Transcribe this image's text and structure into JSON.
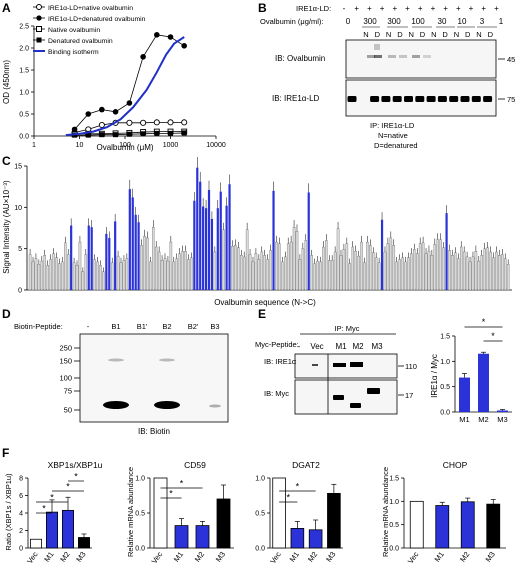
{
  "panels": {
    "A": "A",
    "B": "B",
    "C": "C",
    "D": "D",
    "E": "E",
    "F": "F"
  },
  "chart_data": [
    {
      "panel": "A",
      "type": "line",
      "xscale": "log",
      "xlabel": "Ovalbumin (μM)",
      "ylabel": "OD (450nm)",
      "xlim": [
        1,
        10000
      ],
      "ylim": [
        0,
        2.5
      ],
      "xticks": [
        "1",
        "10",
        "100",
        "1000",
        "10000"
      ],
      "yticks": [
        "0.0",
        "0.5",
        "1.0",
        "1.5",
        "2.0",
        "2.5"
      ],
      "legend": [
        "IRE1α-LD+native ovalbumin",
        "IRE1α-LD+denatured ovalbumin",
        "Native ovalbumin",
        "Denatured ovalbumin",
        "Binding isotherm"
      ],
      "series": [
        {
          "name": "IRE1α-LD+native ovalbumin",
          "marker": "open-circle",
          "x": [
            7.8,
            15.6,
            31,
            62,
            125,
            250,
            500,
            1000,
            2000
          ],
          "y": [
            0.08,
            0.15,
            0.25,
            0.3,
            0.3,
            0.3,
            0.31,
            0.31,
            0.31
          ]
        },
        {
          "name": "IRE1α-LD+denatured ovalbumin",
          "marker": "filled-circle",
          "x": [
            7.8,
            15.6,
            31,
            62,
            125,
            250,
            500,
            1000,
            2000
          ],
          "y": [
            0.15,
            0.5,
            0.6,
            0.55,
            0.75,
            1.8,
            2.3,
            2.25,
            2.05
          ]
        },
        {
          "name": "Native ovalbumin",
          "marker": "open-square",
          "x": [
            7.8,
            15.6,
            31,
            62,
            125,
            250,
            500,
            1000,
            2000
          ],
          "y": [
            0.04,
            0.05,
            0.05,
            0.06,
            0.07,
            0.09,
            0.1,
            0.1,
            0.1
          ]
        },
        {
          "name": "Denatured ovalbumin",
          "marker": "filled-square",
          "x": [
            7.8,
            15.6,
            31,
            62,
            125,
            250,
            500,
            1000,
            2000
          ],
          "y": [
            0.02,
            0.02,
            0.03,
            0.03,
            0.04,
            0.05,
            0.06,
            0.06,
            0.07
          ]
        },
        {
          "name": "Binding isotherm",
          "marker": "line",
          "x": [
            5,
            10,
            20,
            40,
            80,
            150,
            300,
            500,
            800,
            1200,
            2000
          ],
          "y": [
            0.02,
            0.05,
            0.1,
            0.2,
            0.38,
            0.65,
            1.05,
            1.45,
            1.85,
            2.1,
            2.25
          ]
        }
      ]
    },
    {
      "panel": "C",
      "type": "bar",
      "xlabel": "Ovalbumin sequence (N->C)",
      "ylabel": "Signal Intensity (AU×10⁻³)",
      "ylim": [
        0,
        15
      ],
      "yticks": [
        "0",
        "5",
        "10",
        "15"
      ],
      "values": [
        4.3,
        3.4,
        3.8,
        3.1,
        3.5,
        4.2,
        3.0,
        3.7,
        4.4,
        3.9,
        3.2,
        3.4,
        5.7,
        4.3,
        7.8,
        3.3,
        3.0,
        5.8,
        2.2,
        4.3,
        7.8,
        7.6,
        3.7,
        3.4,
        3.0,
        2.2,
        6.8,
        6.3,
        3.3,
        8.3,
        4.1,
        3.3,
        3.6,
        3.8,
        12.2,
        11.2,
        9.1,
        8.2,
        5.4,
        6.5,
        6.3,
        3.4,
        7.6,
        5.2,
        4.6,
        3.6,
        3.8,
        3.5,
        5.8,
        3.4,
        3.8,
        4.4,
        4.7,
        4.7,
        3.7,
        3.9,
        10.8,
        14.8,
        13.1,
        10.1,
        9.9,
        12.1,
        8.6,
        4.6,
        9.9,
        11.9,
        7.3,
        10.2,
        12.8,
        5.3,
        5.4,
        5.1,
        4.2,
        4.0,
        7.3,
        4.3,
        3.4,
        4.4,
        3.7,
        4.6,
        4.2,
        3.7,
        4.8,
        12.0,
        5.8,
        5.6,
        3.4,
        4.0,
        5.6,
        5.8,
        7.6,
        7.1,
        3.7,
        5.0,
        6.0,
        11.8,
        4.2,
        3.2,
        3.5,
        3.4,
        5.2,
        6.0,
        3.6,
        3.6,
        4.6,
        7.4,
        4.2,
        4.9,
        5.6,
        3.2,
        5.2,
        4.7,
        4.1,
        5.8,
        3.3,
        5.8,
        5.4,
        4.5,
        3.9,
        3.3,
        8.5,
        4.6,
        5.6,
        6.3,
        5.4,
        3.4,
        3.7,
        3.9,
        3.4,
        3.9,
        4.4,
        4.9,
        4.4,
        5.6,
        5.7,
        4.4,
        4.7,
        4.2,
        5.5,
        6.1,
        6.1,
        5.1,
        9.3,
        4.8,
        4.2,
        4.5,
        3.8,
        5.2,
        4.6,
        4.0,
        3.4,
        4.0,
        4.7,
        3.5,
        4.2,
        5.0,
        5.1,
        4.6,
        3.9,
        4.6,
        4.2,
        4.3,
        3.8,
        3.1
      ],
      "highlighted_indices": [
        14,
        20,
        21,
        26,
        27,
        29,
        34,
        35,
        36,
        37,
        56,
        57,
        58,
        59,
        60,
        61,
        62,
        64,
        65,
        67,
        68,
        83,
        95,
        120,
        142
      ],
      "colors": {
        "highlighted": "#2a32d8",
        "other": "#d9d9d9"
      }
    },
    {
      "panel": "E",
      "type": "bar",
      "ylabel": "IRE1α / Myc",
      "categories": [
        "M1",
        "M2",
        "M3"
      ],
      "values": [
        0.68,
        1.15,
        0.03
      ],
      "errors": [
        0.08,
        0.03,
        0.02
      ],
      "ylim": [
        0,
        1.5
      ],
      "yticks": [
        "0.0",
        "0.5",
        "1.0",
        "1.5"
      ],
      "significance": [
        "*",
        "*"
      ]
    },
    {
      "panel": "F",
      "type": "bar",
      "title": "XBP1s/XBP1u",
      "ylabel": "Ratio (XBP1s / XBP1u)",
      "categories": [
        "Vec",
        "M1",
        "M2",
        "M3"
      ],
      "values": [
        1.0,
        4.1,
        4.3,
        1.2
      ],
      "errors": [
        0,
        1.4,
        1.5,
        0.4
      ],
      "ylim": [
        0,
        8
      ],
      "yticks": [
        "0",
        "2",
        "4",
        "6",
        "8"
      ],
      "significance": [
        "*",
        "*",
        "*",
        "*"
      ]
    },
    {
      "panel": "F",
      "type": "bar",
      "title": "CD59",
      "ylabel": "Relative mRNA abundance",
      "categories": [
        "Vec",
        "M1",
        "M2",
        "M3"
      ],
      "values": [
        1.0,
        0.32,
        0.32,
        0.7
      ],
      "errors": [
        0,
        0.1,
        0.06,
        0.2
      ],
      "ylim": [
        0,
        1.0
      ],
      "yticks": [
        "0.0",
        "0.5",
        "1.0"
      ],
      "significance": [
        "*",
        "*"
      ]
    },
    {
      "panel": "F",
      "type": "bar",
      "title": "DGAT2",
      "ylabel": "",
      "categories": [
        "Vec",
        "M1",
        "M2",
        "M3"
      ],
      "values": [
        1.0,
        0.28,
        0.26,
        0.78
      ],
      "errors": [
        0,
        0.1,
        0.14,
        0.13
      ],
      "ylim": [
        0,
        1.0
      ],
      "yticks": [
        "0.0",
        "0.5",
        "1.0"
      ],
      "significance": [
        "*",
        "*"
      ]
    },
    {
      "panel": "F",
      "type": "bar",
      "title": "CHOP",
      "ylabel": "Relative mRNA abundance",
      "categories": [
        "Vec",
        "M1",
        "M2",
        "M3"
      ],
      "values": [
        1.0,
        0.91,
        0.99,
        0.94
      ],
      "errors": [
        0,
        0.07,
        0.08,
        0.1
      ],
      "ylim": [
        0,
        1.5
      ],
      "yticks": [
        "0.0",
        "0.5",
        "1.0",
        "1.5"
      ],
      "significance": []
    }
  ],
  "blotB": {
    "header_label": "IRE1α-LD:",
    "header_signs": [
      "-",
      "+",
      "+",
      "+",
      "+",
      "+",
      "+",
      "+",
      "+",
      "+",
      "+",
      "+",
      "+"
    ],
    "conc_label": "Ovalbumin (μg/ml):",
    "conc_values": [
      "0",
      "300",
      "300",
      "100",
      "30",
      "10",
      "3",
      "1"
    ],
    "nd_row": [
      "N",
      "D",
      "N",
      "D",
      "N",
      "D",
      "N",
      "D",
      "N",
      "D",
      "N",
      "D"
    ],
    "blot1_label": "IB: Ovalbumin",
    "blot2_label": "IB: IRE1α-LD",
    "mw1": "45",
    "mw2": "75",
    "footer": [
      "IP: IRE1α-LD",
      "N=native",
      "D=denatured"
    ]
  },
  "blotD": {
    "row_label": "Biotin-Peptide:",
    "lanes": [
      "-",
      "B1",
      "B1'",
      "B2",
      "B2'",
      "B3"
    ],
    "mw": [
      "250",
      "150",
      "100",
      "75",
      "50"
    ],
    "footer": "IB: Biotin"
  },
  "blotE": {
    "header": "IP: Myc",
    "row_label": "Myc-Peptide:",
    "lanes": [
      "-",
      "Vec",
      "M1",
      "M2",
      "M3"
    ],
    "blot1_label": "IB: IRE1α",
    "blot2_label": "IB: Myc",
    "mw1": "110",
    "mw2": "17"
  }
}
